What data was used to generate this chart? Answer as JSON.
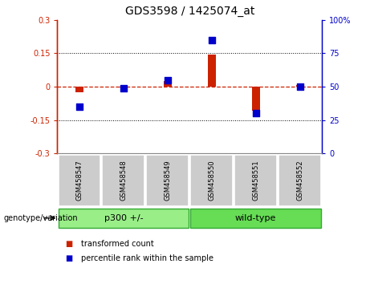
{
  "title": "GDS3598 / 1425074_at",
  "samples": [
    "GSM458547",
    "GSM458548",
    "GSM458549",
    "GSM458550",
    "GSM458551",
    "GSM458552"
  ],
  "transformed_count": [
    -0.025,
    -0.005,
    0.025,
    0.145,
    -0.11,
    0.008
  ],
  "percentile_rank": [
    35,
    49,
    55,
    85,
    30,
    50
  ],
  "ylim_left": [
    -0.3,
    0.3
  ],
  "ylim_right": [
    0,
    100
  ],
  "yticks_left": [
    -0.3,
    -0.15,
    0,
    0.15,
    0.3
  ],
  "yticks_right": [
    0,
    25,
    50,
    75,
    100
  ],
  "ytick_labels_left": [
    "-0.3",
    "-0.15",
    "0",
    "0.15",
    "0.3"
  ],
  "ytick_labels_right": [
    "0",
    "25",
    "50",
    "75",
    "100%"
  ],
  "hlines": [
    -0.15,
    0.15
  ],
  "bar_color": "#cc2200",
  "dot_color": "#0000cc",
  "zero_line_color": "#cc2200",
  "groups": [
    {
      "label": "p300 +/-",
      "start": 0,
      "end": 2,
      "color": "#99ee88"
    },
    {
      "label": "wild-type",
      "start": 3,
      "end": 5,
      "color": "#66dd55"
    }
  ],
  "group_label": "genotype/variation",
  "legend_bar_label": "transformed count",
  "legend_dot_label": "percentile rank within the sample",
  "bar_width": 0.18,
  "dot_size": 30,
  "background_main": "#ffffff",
  "xticklabel_bg": "#cccccc",
  "tick_color_left": "#cc2200",
  "tick_color_right": "#0000cc",
  "spine_color": "#888888"
}
